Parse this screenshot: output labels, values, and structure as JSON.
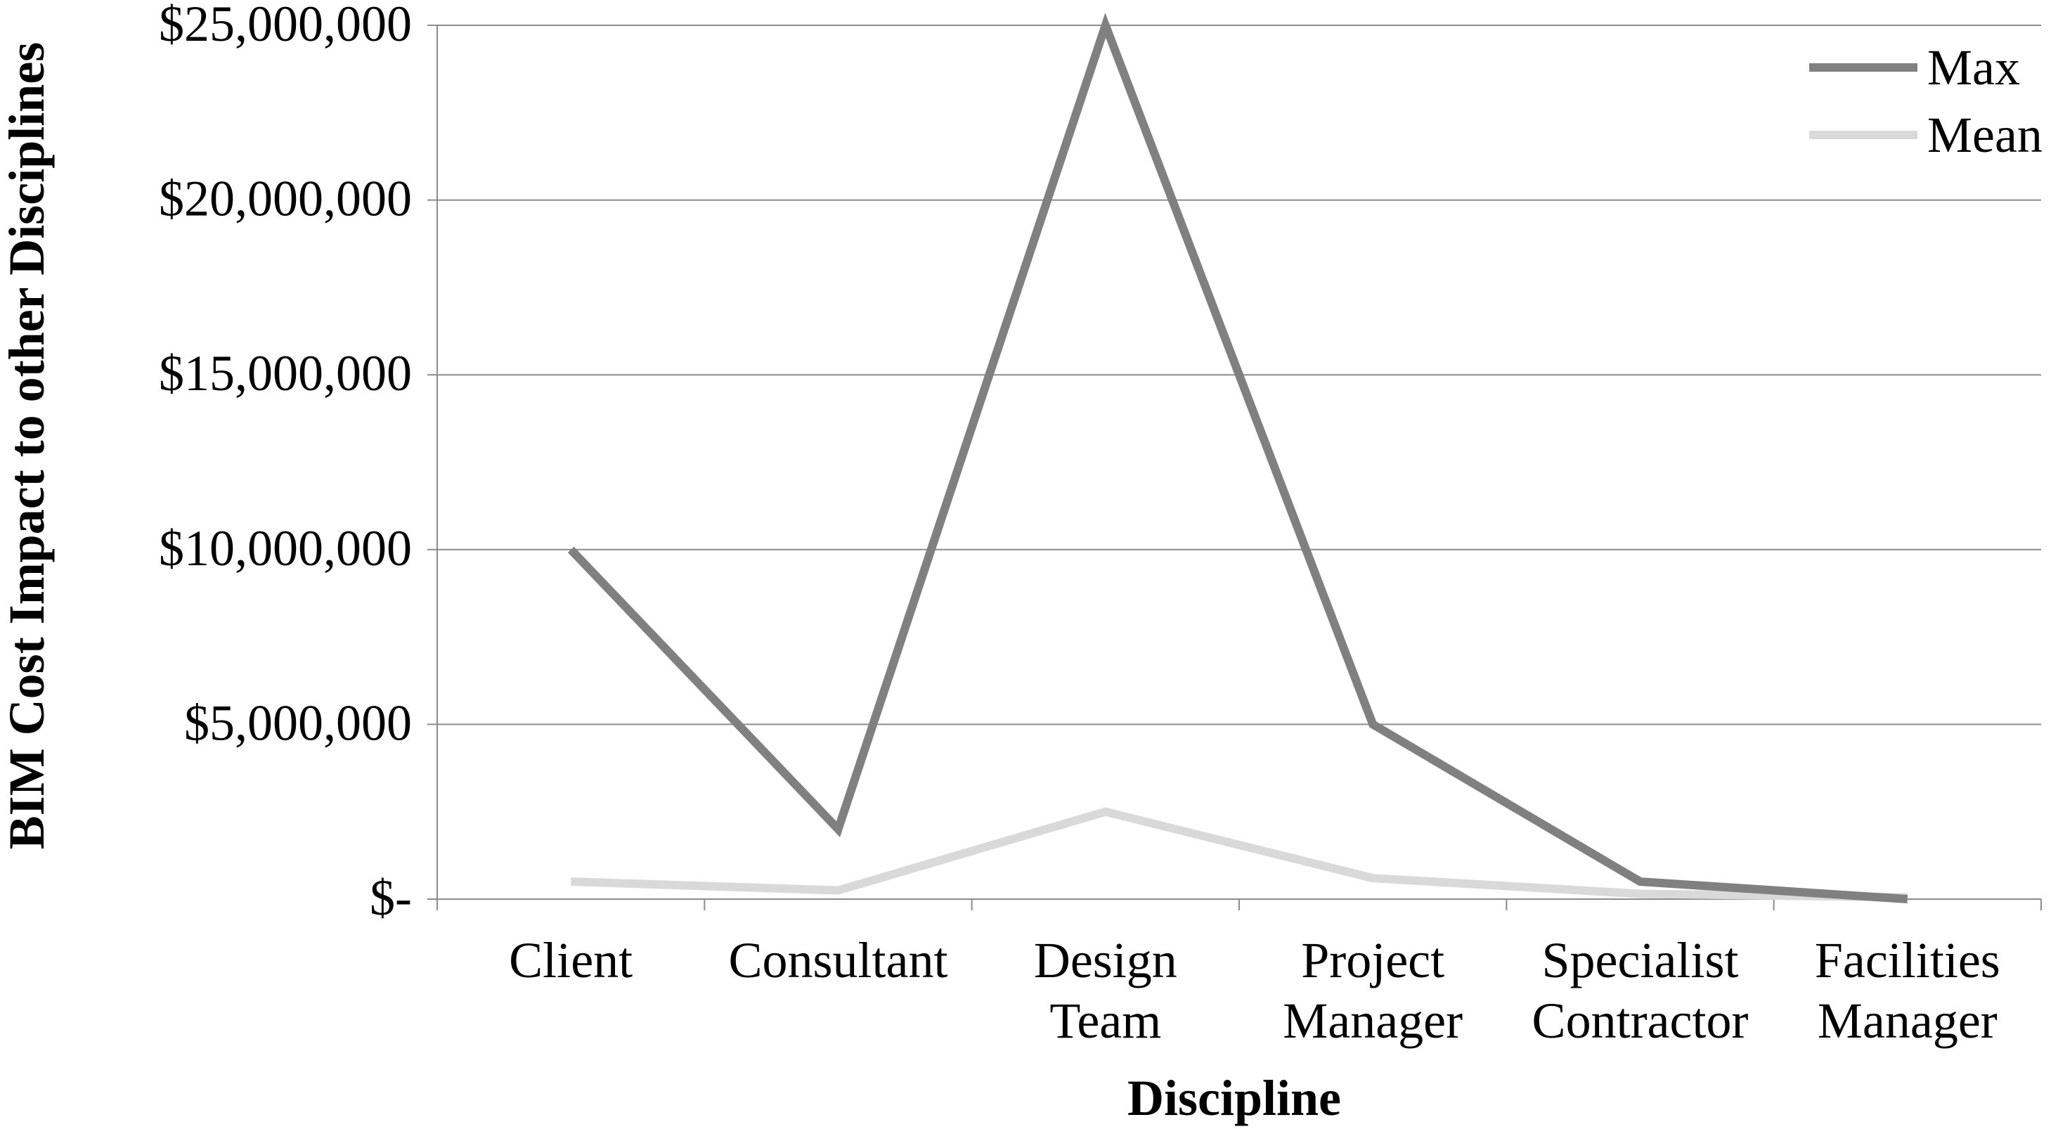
{
  "chart_data": {
    "type": "line",
    "categories": [
      [
        "Client"
      ],
      [
        "Consultant"
      ],
      [
        "Design",
        "Team"
      ],
      [
        "Project",
        "Manager"
      ],
      [
        "Specialist",
        "Contractor"
      ],
      [
        "Facilities",
        "Manager"
      ]
    ],
    "series": [
      {
        "name": "Max",
        "color": "#808080",
        "values": [
          10000000,
          2000000,
          25000000,
          5000000,
          500000,
          0
        ]
      },
      {
        "name": "Mean",
        "color": "#d9d9d9",
        "values": [
          500000,
          250000,
          2500000,
          600000,
          150000,
          50000
        ]
      }
    ],
    "xlabel": "Discipline",
    "ylabel": "BIM Cost Impact to other Disciplines",
    "ylim": [
      0,
      25000000
    ],
    "y_ticks": [
      {
        "value": 0,
        "label": "$-"
      },
      {
        "value": 5000000,
        "label": "$5,000,000"
      },
      {
        "value": 10000000,
        "label": "$10,000,000"
      },
      {
        "value": 15000000,
        "label": "$15,000,000"
      },
      {
        "value": 20000000,
        "label": "$20,000,000"
      },
      {
        "value": 25000000,
        "label": "$25,000,000"
      }
    ],
    "grid": true,
    "legend_position": "top-right"
  }
}
